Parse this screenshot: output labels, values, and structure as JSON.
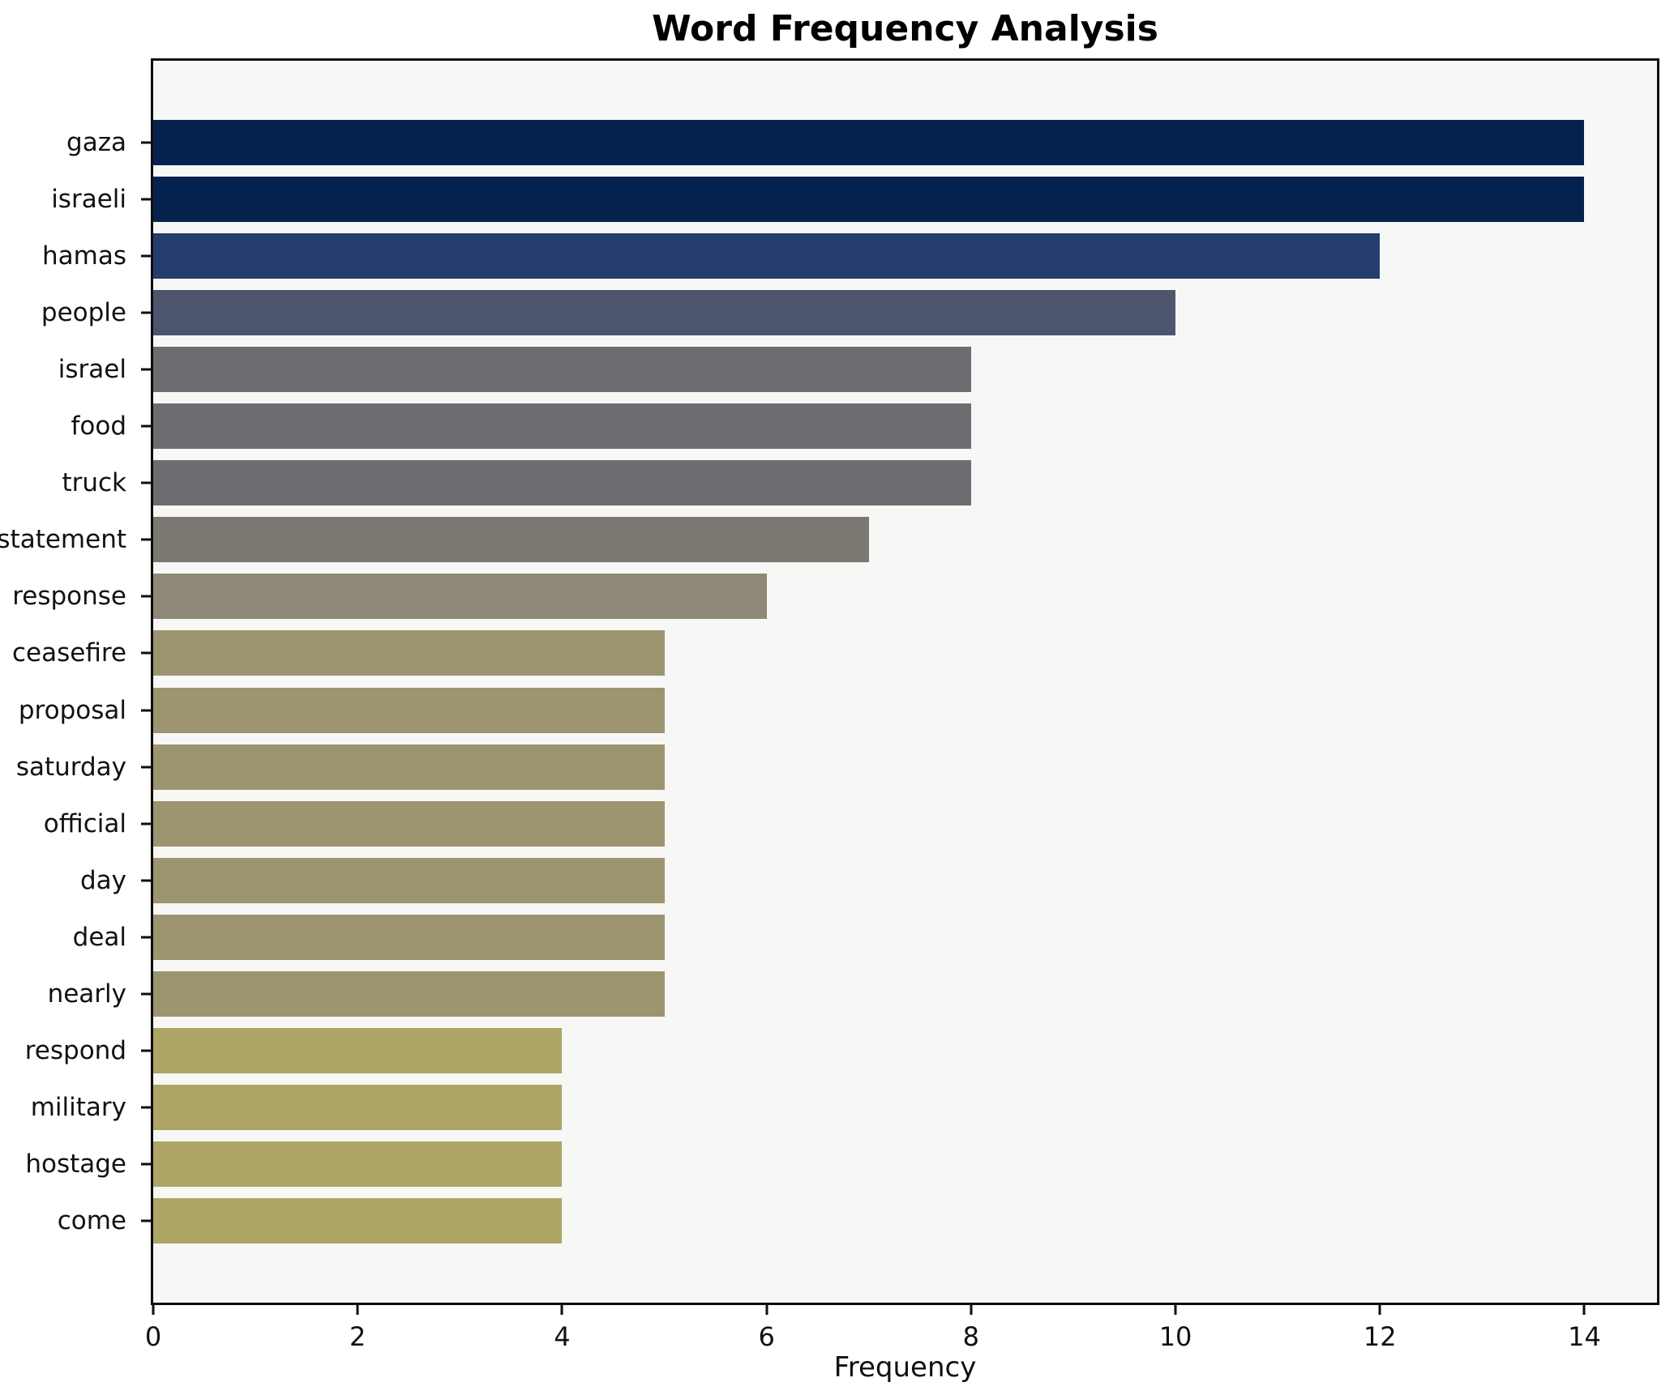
{
  "title": "Word Frequency Analysis",
  "chart_data": {
    "type": "bar",
    "orientation": "horizontal",
    "title": "Word Frequency Analysis",
    "xlabel": "Frequency",
    "ylabel": "",
    "categories": [
      "gaza",
      "israeli",
      "hamas",
      "people",
      "israel",
      "food",
      "truck",
      "statement",
      "response",
      "ceasefire",
      "proposal",
      "saturday",
      "official",
      "day",
      "deal",
      "nearly",
      "respond",
      "military",
      "hostage",
      "come"
    ],
    "values": [
      14,
      14,
      12,
      10,
      8,
      8,
      8,
      7,
      6,
      5,
      5,
      5,
      5,
      5,
      5,
      5,
      4,
      4,
      4,
      4
    ],
    "bar_colors": [
      "#05224e",
      "#05224e",
      "#253c6e",
      "#4d556e",
      "#6c6d70",
      "#6c6d70",
      "#6c6d70",
      "#7a7870",
      "#8f8977",
      "#9d9470",
      "#9d9470",
      "#9d9470",
      "#9d9470",
      "#9d9470",
      "#9d9470",
      "#9d9470",
      "#ada566",
      "#ada566",
      "#ada566",
      "#ada566"
    ],
    "xlim": [
      0,
      14.71
    ],
    "xticks": [
      0,
      2,
      4,
      6,
      8,
      10,
      12,
      14
    ],
    "grid": false,
    "legend": null,
    "plot_background": "#f7f7f6",
    "figure_background": "#ffffff",
    "colormap": "cividis"
  }
}
